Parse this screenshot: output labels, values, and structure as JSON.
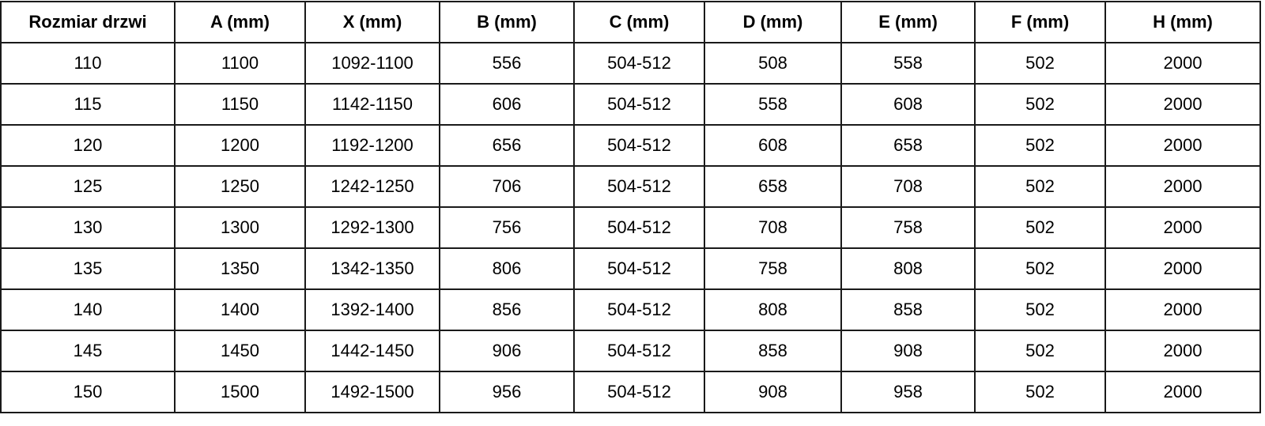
{
  "chart_data": {
    "type": "table",
    "columns": [
      "Rozmiar drzwi",
      "A (mm)",
      "X (mm)",
      "B (mm)",
      "C (mm)",
      "D (mm)",
      "E (mm)",
      "F (mm)",
      "H (mm)"
    ],
    "rows": [
      [
        "110",
        "1100",
        "1092-1100",
        "556",
        "504-512",
        "508",
        "558",
        "502",
        "2000"
      ],
      [
        "115",
        "1150",
        "1142-1150",
        "606",
        "504-512",
        "558",
        "608",
        "502",
        "2000"
      ],
      [
        "120",
        "1200",
        "1192-1200",
        "656",
        "504-512",
        "608",
        "658",
        "502",
        "2000"
      ],
      [
        "125",
        "1250",
        "1242-1250",
        "706",
        "504-512",
        "658",
        "708",
        "502",
        "2000"
      ],
      [
        "130",
        "1300",
        "1292-1300",
        "756",
        "504-512",
        "708",
        "758",
        "502",
        "2000"
      ],
      [
        "135",
        "1350",
        "1342-1350",
        "806",
        "504-512",
        "758",
        "808",
        "502",
        "2000"
      ],
      [
        "140",
        "1400",
        "1392-1400",
        "856",
        "504-512",
        "808",
        "858",
        "502",
        "2000"
      ],
      [
        "145",
        "1450",
        "1442-1450",
        "906",
        "504-512",
        "858",
        "908",
        "502",
        "2000"
      ],
      [
        "150",
        "1500",
        "1492-1500",
        "956",
        "504-512",
        "908",
        "958",
        "502",
        "2000"
      ]
    ],
    "style": {
      "border_color": "#1a1a1a",
      "background": "#ffffff",
      "text_color": "#000000"
    }
  }
}
